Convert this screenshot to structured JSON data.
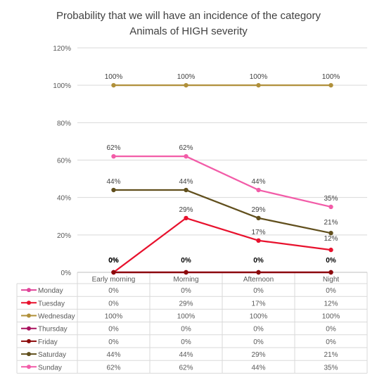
{
  "chart_data": {
    "type": "line",
    "title_lines": [
      "Probability that we will have an incidence of the category",
      "Animals of HIGH severity"
    ],
    "categories": [
      "Early morning",
      "Morning",
      "Afternoon",
      "Night"
    ],
    "y_ticks": [
      "0%",
      "20%",
      "40%",
      "60%",
      "80%",
      "100%",
      "120%"
    ],
    "ylim": [
      0,
      120
    ],
    "grid": true,
    "legend_placement": "data table below chart",
    "series": [
      {
        "name": "Monday",
        "color": "#e0459a",
        "values": [
          0,
          0,
          0,
          0
        ],
        "labels": [
          "0%",
          "0%",
          "0%",
          "0%"
        ],
        "show_labels": false
      },
      {
        "name": "Tuesday",
        "color": "#e8112d",
        "values": [
          0,
          29,
          17,
          12
        ],
        "labels": [
          "0%",
          "29%",
          "17%",
          "12%"
        ],
        "show_labels": true
      },
      {
        "name": "Wednesday",
        "color": "#b0903a",
        "values": [
          100,
          100,
          100,
          100
        ],
        "labels": [
          "100%",
          "100%",
          "100%",
          "100%"
        ],
        "show_labels": true
      },
      {
        "name": "Thursday",
        "color": "#a8125e",
        "values": [
          0,
          0,
          0,
          0
        ],
        "labels": [
          "0%",
          "0%",
          "0%",
          "0%"
        ],
        "show_labels": false
      },
      {
        "name": "Friday",
        "color": "#8b0a0a",
        "values": [
          0,
          0,
          0,
          0
        ],
        "labels": [
          "0%",
          "0%",
          "0%",
          "0%"
        ],
        "show_labels": true
      },
      {
        "name": "Saturday",
        "color": "#614f1d",
        "values": [
          44,
          44,
          29,
          21
        ],
        "labels": [
          "44%",
          "44%",
          "29%",
          "21%"
        ],
        "show_labels": true
      },
      {
        "name": "Sunday",
        "color": "#f25ca8",
        "values": [
          62,
          62,
          44,
          35
        ],
        "labels": [
          "62%",
          "62%",
          "44%",
          "35%"
        ],
        "show_labels": true
      }
    ]
  }
}
